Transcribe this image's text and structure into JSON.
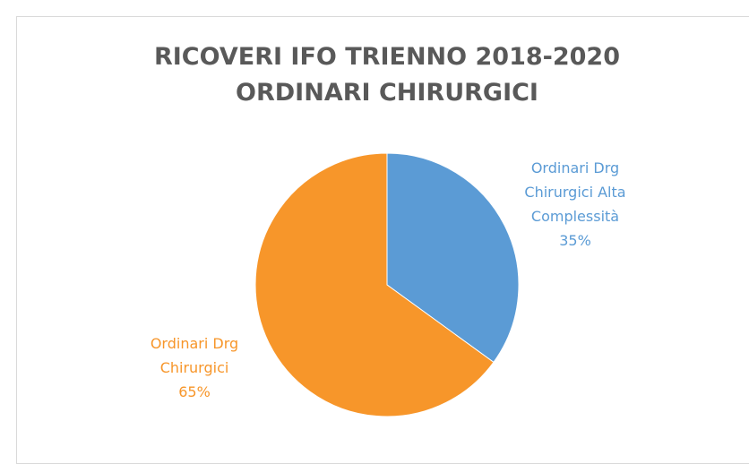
{
  "chart_data": {
    "type": "pie",
    "title": [
      "RICOVERI IFO TRIENNO 2018-2020",
      "ORDINARI CHIRURGICI"
    ],
    "categories": [
      "Ordinari Drg Chirurgici Alta Complessità",
      "Ordinari Drg Chirurgici"
    ],
    "values": [
      35,
      65
    ],
    "value_labels": [
      "35%",
      "65%"
    ],
    "colors": [
      "#5b9bd5",
      "#f7962a"
    ]
  }
}
